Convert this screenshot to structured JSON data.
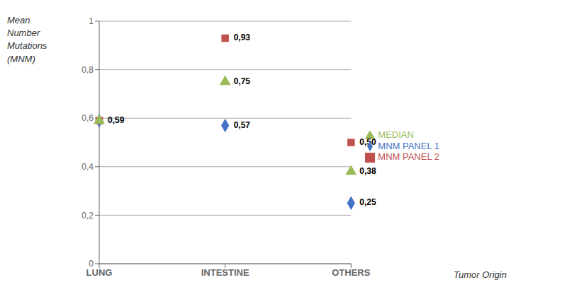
{
  "chart_data": {
    "type": "scatter",
    "categories": [
      "LUNG",
      "INTESTINE",
      "OTHERS"
    ],
    "xlabel": "Tumor Origin",
    "ylabel": "Mean\nNumber\nMutations\n(MNM)",
    "ylim": [
      0,
      1.0
    ],
    "yticks": [
      0,
      {
        "value": 0.2,
        "label": "0,2"
      },
      {
        "value": 0.4,
        "label": "0,4"
      },
      {
        "value": 0.6,
        "label": "0,6"
      },
      {
        "value": 0.8,
        "label": "0,8"
      },
      1
    ],
    "grid": true,
    "legend": "right",
    "data_labels": true,
    "series": [
      {
        "name": "MNM PANEL 1",
        "color": "#4472C4",
        "marker": "diamond",
        "values": [
          0.59,
          0.57,
          0.25
        ],
        "value_labels": [
          "0,59",
          "0,57",
          "0,25"
        ]
      },
      {
        "name": "MNM PANEL 2",
        "color": "#C0504D",
        "marker": "square",
        "values": [
          0.59,
          0.93,
          0.5
        ],
        "value_labels": [
          null,
          "0,93",
          "0,50"
        ]
      },
      {
        "name": "MEDIAN",
        "color": "#9BBB59",
        "marker": "triangle",
        "values": [
          0.59,
          0.75,
          0.38
        ],
        "value_labels": [
          null,
          "0,75",
          "0,38"
        ]
      }
    ]
  }
}
